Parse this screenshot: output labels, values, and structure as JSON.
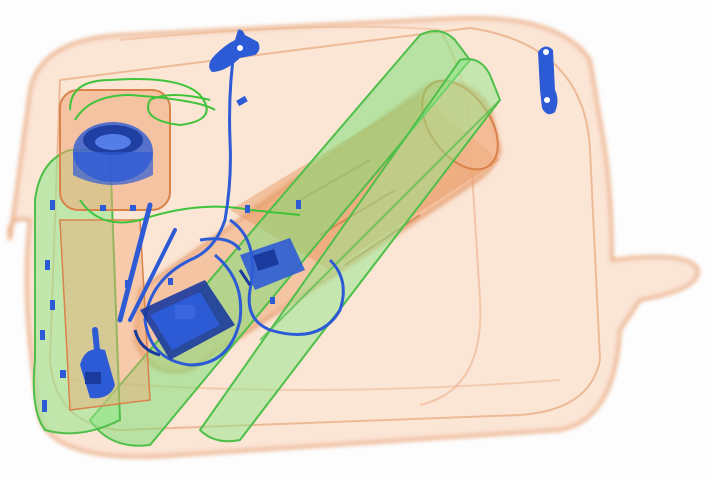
{
  "scan": {
    "subject": "bag",
    "view": "x-ray"
  },
  "colors": {
    "background": "#fdfdfd",
    "organic": "#f0a878",
    "organic_dark": "#d9824a",
    "inorganic": "#7fe07a",
    "inorganic_dark": "#4fbf4a",
    "metal": "#2d5bd6",
    "metal_dark": "#1a3a9e"
  }
}
